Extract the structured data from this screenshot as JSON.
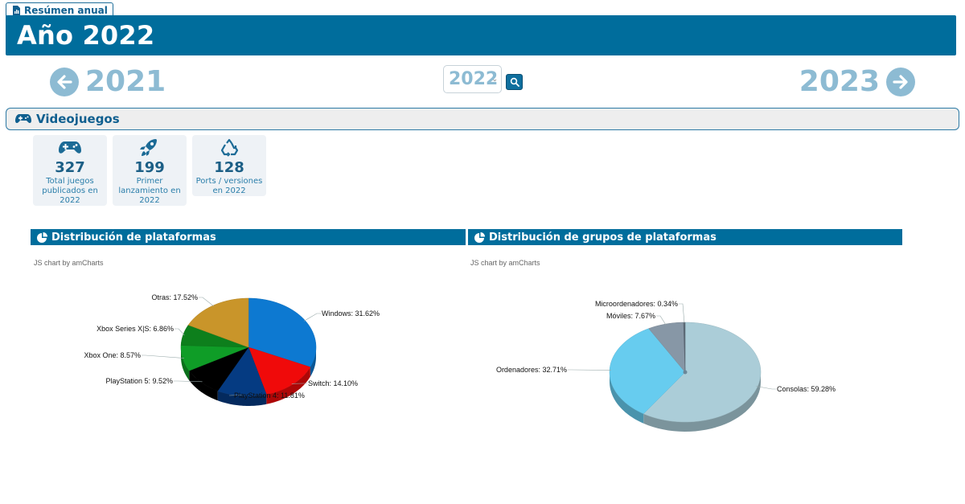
{
  "tab": {
    "label": "Resúmen anual"
  },
  "header": {
    "title": "Año 2022"
  },
  "nav": {
    "prev_year": "2021",
    "next_year": "2023",
    "selected_year": "2022"
  },
  "section": {
    "title": "Videojuegos"
  },
  "stats": [
    {
      "value": "327",
      "label": "Total juegos publicados en 2022",
      "icon": "gamepad-icon"
    },
    {
      "value": "199",
      "label": "Primer lanzamiento en 2022",
      "icon": "rocket-icon"
    },
    {
      "value": "128",
      "label": "Ports / versiones en 2022",
      "icon": "recycle-icon"
    }
  ],
  "panels": [
    {
      "title": "Distribución de plataformas",
      "credit": "JS chart by amCharts"
    },
    {
      "title": "Distribución de grupos de plataformas",
      "credit": "JS chart by amCharts"
    }
  ],
  "colors": {
    "primary": "#006d9c",
    "nav": "#8dbbd3"
  },
  "chart_data": [
    {
      "type": "pie",
      "title": "Distribución de plataformas",
      "categories": [
        "Windows",
        "Switch",
        "PlayStation 4",
        "PlayStation 5",
        "Xbox One",
        "Xbox Series X|S",
        "Otras"
      ],
      "values": [
        31.62,
        14.1,
        11.81,
        9.52,
        8.57,
        6.86,
        17.52
      ],
      "labels": [
        "Windows: 31.62%",
        "Switch: 14.10%",
        "PlayStation 4: 11.81%",
        "PlayStation 5: 9.52%",
        "Xbox One: 8.57%",
        "Xbox Series X|S: 6.86%",
        "Otras: 17.52%"
      ],
      "colors": [
        "#0d79d1",
        "#f00a0a",
        "#053b82",
        "#000000",
        "#0f9d27",
        "#0d7f1c",
        "#c9952a"
      ]
    },
    {
      "type": "pie",
      "title": "Distribución de grupos de plataformas",
      "categories": [
        "Consolas",
        "Ordenadores",
        "Móviles",
        "Microordenadores"
      ],
      "values": [
        59.28,
        32.71,
        7.67,
        0.34
      ],
      "labels": [
        "Consolas: 59.28%",
        "Ordenadores: 32.71%",
        "Móviles: 7.67%",
        "Microordenadores: 0.34%"
      ],
      "colors": [
        "#abcdd8",
        "#67ccef",
        "#8797a6",
        "#5d6b78"
      ]
    }
  ]
}
